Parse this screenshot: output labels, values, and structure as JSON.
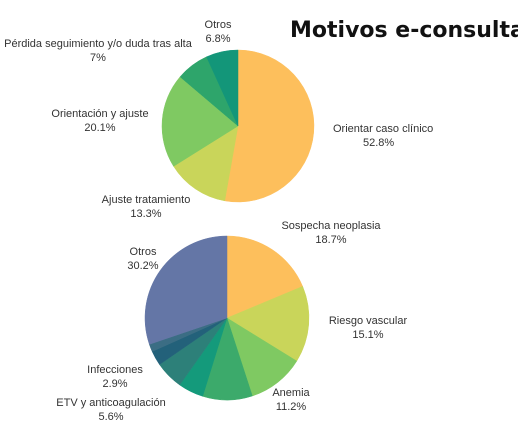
{
  "title": "Motivos e-consulta",
  "chart_data": [
    {
      "type": "pie",
      "slices": [
        {
          "label": "Orientar caso clínico",
          "value": 52.8,
          "value_label": "52.8%",
          "color": "#FDBF5C"
        },
        {
          "label": "Ajuste tratamiento",
          "value": 13.3,
          "value_label": "13.3%",
          "color": "#C9D55A"
        },
        {
          "label": "Orientación y ajuste",
          "value": 20.1,
          "value_label": "20.1%",
          "color": "#7FC962"
        },
        {
          "label": "Pérdida seguimiento y/o duda tras alta",
          "value": 7.0,
          "value_label": "7%",
          "color": "#2EA56B"
        },
        {
          "label": "Otros",
          "value": 6.8,
          "value_label": "6.8%",
          "color": "#139679"
        }
      ]
    },
    {
      "type": "pie",
      "slices": [
        {
          "label": "Sospecha neoplasia",
          "value": 18.7,
          "value_label": "18.7%",
          "color": "#FDBF5C"
        },
        {
          "label": "Riesgo vascular",
          "value": 15.1,
          "value_label": "15.1%",
          "color": "#C9D55A"
        },
        {
          "label": "Anemia",
          "value": 11.2,
          "value_label": "11.2%",
          "color": "#7FC962"
        },
        {
          "label": "",
          "value": 9.8,
          "value_label": "",
          "color": "#3CAA6B"
        },
        {
          "label": "",
          "value": 5.0,
          "value_label": "",
          "color": "#149A7B"
        },
        {
          "label": "ETV y anticoagulación",
          "value": 5.6,
          "value_label": "5.6%",
          "color": "#2D8079"
        },
        {
          "label": "Infecciones",
          "value": 2.9,
          "value_label": "2.9%",
          "color": "#23617A"
        },
        {
          "label": "",
          "value": 1.5,
          "value_label": "",
          "color": "#3B6D84"
        },
        {
          "label": "Otros",
          "value": 30.2,
          "value_label": "30.2%",
          "color": "#6476A6"
        }
      ]
    }
  ]
}
